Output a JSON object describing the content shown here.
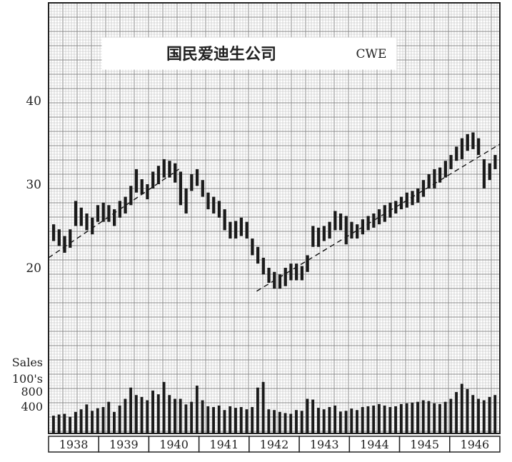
{
  "chart_data": {
    "type": "bar",
    "title": "国民爱迪生公司",
    "symbol": "CWE",
    "price_ticks": [
      20,
      30,
      40
    ],
    "sales_label_line1": "Sales",
    "sales_label_line2": "100's",
    "sales_ticks": [
      400,
      800
    ],
    "years": [
      "1938",
      "1939",
      "1940",
      "1941",
      "1942",
      "1943",
      "1944",
      "1945",
      "1946"
    ],
    "price_series": {
      "name": "price",
      "weeks_per_year": 52,
      "highs": [
        25.2,
        24.6,
        23.8,
        24.6,
        28.0,
        27.2,
        26.5,
        26.0,
        27.5,
        27.8,
        27.5,
        27.0,
        28.0,
        28.5,
        29.8,
        31.8,
        30.6,
        30.0,
        31.5,
        32.2,
        33.0,
        32.8,
        32.5,
        31.5,
        29.5,
        31.2,
        31.8,
        30.5,
        29.0,
        28.5,
        28.0,
        27.0,
        25.5,
        25.6,
        26.0,
        25.5,
        23.5,
        22.5,
        21.2,
        20.0,
        19.5,
        19.2,
        20.0,
        20.5,
        20.5,
        20.2,
        21.5,
        25.0,
        24.8,
        25.0,
        25.5,
        26.8,
        26.5,
        26.2,
        25.5,
        25.2,
        25.8,
        26.2,
        26.5,
        27.0,
        27.5,
        27.8,
        28.0,
        28.5,
        29.0,
        29.2,
        29.5,
        30.5,
        31.2,
        31.8,
        32.0,
        32.8,
        33.5,
        34.5,
        35.5,
        36.0,
        36.2,
        35.5,
        33.0,
        32.5,
        33.5
      ],
      "lows": [
        23.2,
        22.6,
        21.8,
        22.4,
        25.0,
        25.0,
        24.5,
        24.0,
        25.5,
        25.5,
        25.5,
        25.0,
        26.0,
        26.5,
        27.5,
        29.0,
        28.8,
        28.2,
        29.5,
        30.0,
        30.8,
        30.8,
        30.2,
        27.5,
        26.5,
        29.2,
        29.8,
        28.5,
        27.0,
        26.5,
        26.0,
        24.5,
        23.5,
        23.5,
        23.8,
        23.5,
        21.5,
        20.5,
        19.2,
        18.2,
        17.5,
        17.5,
        17.8,
        18.5,
        18.5,
        18.5,
        19.5,
        22.5,
        22.5,
        23.2,
        23.5,
        24.5,
        24.5,
        22.8,
        23.5,
        23.5,
        24.0,
        24.5,
        24.8,
        25.2,
        25.5,
        26.0,
        26.5,
        27.0,
        27.2,
        27.5,
        27.8,
        28.5,
        29.5,
        29.5,
        30.2,
        30.8,
        31.8,
        32.8,
        33.0,
        34.0,
        34.2,
        33.5,
        29.5,
        30.5,
        31.8
      ]
    },
    "trend_lines": [
      {
        "from": [
          "1938",
          21.2
        ],
        "to": [
          "1940.6",
          31.8
        ]
      },
      {
        "from": [
          "1942.15",
          17.2
        ],
        "to": [
          "1947",
          34.8
        ]
      }
    ],
    "sales_series": {
      "name": "sales",
      "values": [
        150,
        180,
        200,
        120,
        250,
        320,
        450,
        280,
        350,
        380,
        520,
        250,
        420,
        600,
        900,
        700,
        650,
        560,
        820,
        720,
        1050,
        700,
        600,
        600,
        450,
        520,
        950,
        560,
        400,
        380,
        420,
        300,
        400,
        360,
        380,
        320,
        380,
        900,
        1050,
        320,
        300,
        250,
        220,
        200,
        300,
        280,
        600,
        580,
        360,
        320,
        380,
        420,
        260,
        280,
        340,
        300,
        380,
        400,
        420,
        460,
        420,
        380,
        400,
        460,
        480,
        500,
        520,
        560,
        540,
        480,
        460,
        520,
        600,
        780,
        1000,
        860,
        700,
        600,
        560,
        650,
        700
      ]
    },
    "xlabel": "",
    "ylabel": "",
    "grid": true
  }
}
